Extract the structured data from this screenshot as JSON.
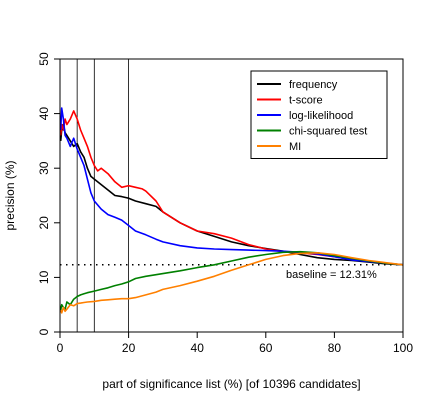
{
  "chart_data": {
    "type": "line",
    "title": "",
    "xlabel": "part of significance list (%) [of 10396 candidates]",
    "ylabel": "precision (%)",
    "xlim": [
      0,
      100
    ],
    "ylim": [
      0,
      50
    ],
    "xticks": [
      "0",
      "20",
      "40",
      "60",
      "80",
      "100"
    ],
    "yticks": [
      "0",
      "10",
      "20",
      "30",
      "40",
      "50"
    ],
    "grid": false,
    "legend_position": "top-right",
    "vertical_lines": [
      0,
      5,
      10,
      20
    ],
    "baseline": {
      "value": 12.31,
      "label": "baseline = 12.31%",
      "color": "#000000"
    },
    "series": [
      {
        "name": "frequency",
        "color": "#000000",
        "x": [
          0.2,
          0.5,
          1,
          1.5,
          2,
          3,
          4,
          5,
          6,
          7,
          8,
          9,
          10,
          12,
          14,
          16,
          18,
          20,
          22,
          25,
          28,
          30,
          35,
          40,
          45,
          50,
          55,
          60,
          65,
          70,
          75,
          80,
          85,
          90,
          95,
          100
        ],
        "y": [
          35,
          37,
          38,
          36.5,
          36,
          35,
          34,
          34.5,
          33,
          32,
          30,
          28.5,
          28,
          27,
          26,
          25,
          24.8,
          24.5,
          24,
          23.5,
          23,
          22,
          20,
          18.5,
          17.5,
          16.5,
          15.8,
          15.3,
          14.8,
          14.2,
          13.6,
          13.3,
          13.1,
          12.8,
          12.5,
          12.31
        ]
      },
      {
        "name": "t-score",
        "color": "#ff0000",
        "x": [
          0.2,
          0.5,
          1,
          1.5,
          2,
          3,
          4,
          5,
          6,
          7,
          8,
          9,
          10,
          11,
          12,
          14,
          16,
          18,
          20,
          22,
          24,
          25,
          28,
          30,
          35,
          40,
          45,
          50,
          55,
          60,
          65,
          70,
          75,
          80,
          85,
          90,
          95,
          100
        ],
        "y": [
          36,
          38,
          37,
          39,
          38,
          39,
          40.5,
          39,
          37,
          35.5,
          34,
          32,
          30.5,
          29.5,
          30,
          29,
          27.5,
          26.5,
          26.8,
          26.5,
          26.2,
          25.8,
          24,
          22,
          20,
          18.5,
          18,
          17.2,
          16,
          15.2,
          14.7,
          14.5,
          14.2,
          13.8,
          13.3,
          13,
          12.6,
          12.31
        ]
      },
      {
        "name": "log-likelihood",
        "color": "#0000ff",
        "x": [
          0.2,
          0.5,
          1,
          1.5,
          2,
          3,
          4,
          5,
          6,
          7,
          8,
          9,
          10,
          12,
          14,
          16,
          18,
          20,
          22,
          25,
          28,
          30,
          35,
          40,
          45,
          50,
          55,
          60,
          65,
          70,
          75,
          80,
          85,
          90,
          95,
          100
        ],
        "y": [
          37,
          41,
          39,
          36,
          35.5,
          34,
          35.5,
          33.5,
          32,
          30.5,
          28,
          25.5,
          24,
          22.5,
          21.5,
          21,
          20.5,
          19.5,
          18.5,
          17.8,
          17,
          16.5,
          15.8,
          15.4,
          15.2,
          15.1,
          15,
          14.9,
          14.8,
          14.6,
          14.3,
          13.8,
          13.2,
          12.9,
          12.6,
          12.31
        ]
      },
      {
        "name": "chi-squared test",
        "color": "#008000",
        "x": [
          0.2,
          0.5,
          1,
          1.5,
          2,
          3,
          4,
          5,
          6,
          7,
          8,
          10,
          12,
          14,
          16,
          18,
          20,
          22,
          25,
          28,
          30,
          35,
          40,
          45,
          50,
          55,
          60,
          65,
          70,
          75,
          80,
          85,
          90,
          95,
          100
        ],
        "y": [
          4,
          5,
          4.5,
          4.2,
          5.5,
          5,
          6,
          6.5,
          6.8,
          7,
          7.2,
          7.5,
          7.8,
          8.1,
          8.5,
          8.8,
          9.2,
          9.8,
          10.2,
          10.5,
          10.7,
          11.2,
          11.8,
          12.3,
          13,
          13.7,
          14.2,
          14.6,
          14.7,
          14.5,
          14,
          13.5,
          13,
          12.6,
          12.31
        ]
      },
      {
        "name": "MI",
        "color": "#ff8000",
        "x": [
          0.2,
          0.5,
          1,
          1.5,
          2,
          3,
          4,
          5,
          6,
          7,
          8,
          10,
          12,
          14,
          16,
          18,
          20,
          22,
          25,
          28,
          30,
          35,
          40,
          45,
          50,
          55,
          60,
          65,
          70,
          75,
          80,
          85,
          90,
          95,
          100
        ],
        "y": [
          4,
          3.5,
          4.5,
          3.8,
          4.2,
          5,
          4.8,
          5.2,
          5.3,
          5.4,
          5.5,
          5.6,
          5.8,
          5.9,
          6,
          6.1,
          6.1,
          6.3,
          6.8,
          7.3,
          7.8,
          8.5,
          9.3,
          10.2,
          11.3,
          12.3,
          13.3,
          14,
          14.4,
          14.5,
          14.2,
          13.6,
          13.1,
          12.7,
          12.31
        ]
      }
    ]
  }
}
